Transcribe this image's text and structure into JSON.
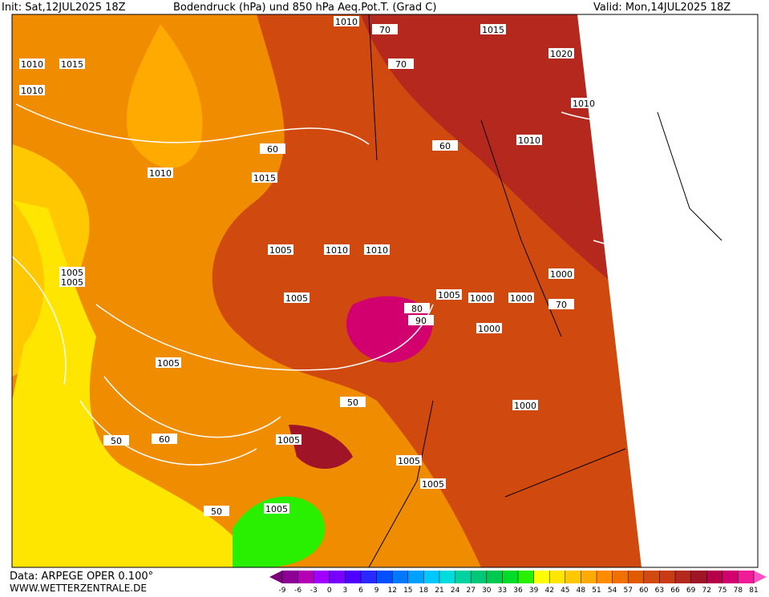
{
  "header": {
    "init": "Init: Sat,12JUL2025 18Z",
    "title": "Bodendruck (hPa) und 850 hPa Aeq.Pot.T. (Grad C)",
    "valid": "Valid: Mon,14JUL2025 18Z"
  },
  "footer": {
    "source": "Data: ARPEGE OPER 0.100°",
    "url": "WWW.WETTERZENTRALE.DE"
  },
  "colorbar": {
    "ticks": [
      -9,
      -6,
      -3,
      0,
      3,
      6,
      9,
      12,
      15,
      18,
      21,
      24,
      27,
      30,
      33,
      36,
      39,
      42,
      45,
      48,
      51,
      54,
      57,
      60,
      63,
      66,
      69,
      72,
      75,
      78,
      81
    ],
    "colors": [
      "#7a007a",
      "#8c0096",
      "#b400b4",
      "#a000ff",
      "#7800ff",
      "#5000ff",
      "#2828ff",
      "#0050ff",
      "#0078ff",
      "#00a0ff",
      "#00c8ff",
      "#00dcdc",
      "#00d2a0",
      "#00c878",
      "#00c850",
      "#00dc28",
      "#28f000",
      "#ffff00",
      "#ffe600",
      "#ffc800",
      "#ffaa00",
      "#ff8c00",
      "#f07000",
      "#e05a00",
      "#d04a10",
      "#c83c14",
      "#b4281e",
      "#a01428",
      "#b40046",
      "#d2006e",
      "#f01e96",
      "#ff50c8"
    ]
  },
  "map_labels": [
    "1010",
    "70",
    "1015",
    "1020",
    "1010",
    "1015",
    "1010",
    "1010",
    "1010",
    "1015",
    "1010",
    "1005",
    "1005",
    "1005",
    "1010",
    "1005",
    "1010",
    "1005",
    "1000",
    "1000",
    "1000",
    "1000",
    "1005",
    "1005",
    "1005",
    "1005",
    "1000",
    "1005",
    "60",
    "50",
    "50",
    "60",
    "50",
    "70",
    "70",
    "60",
    "80",
    "90"
  ]
}
